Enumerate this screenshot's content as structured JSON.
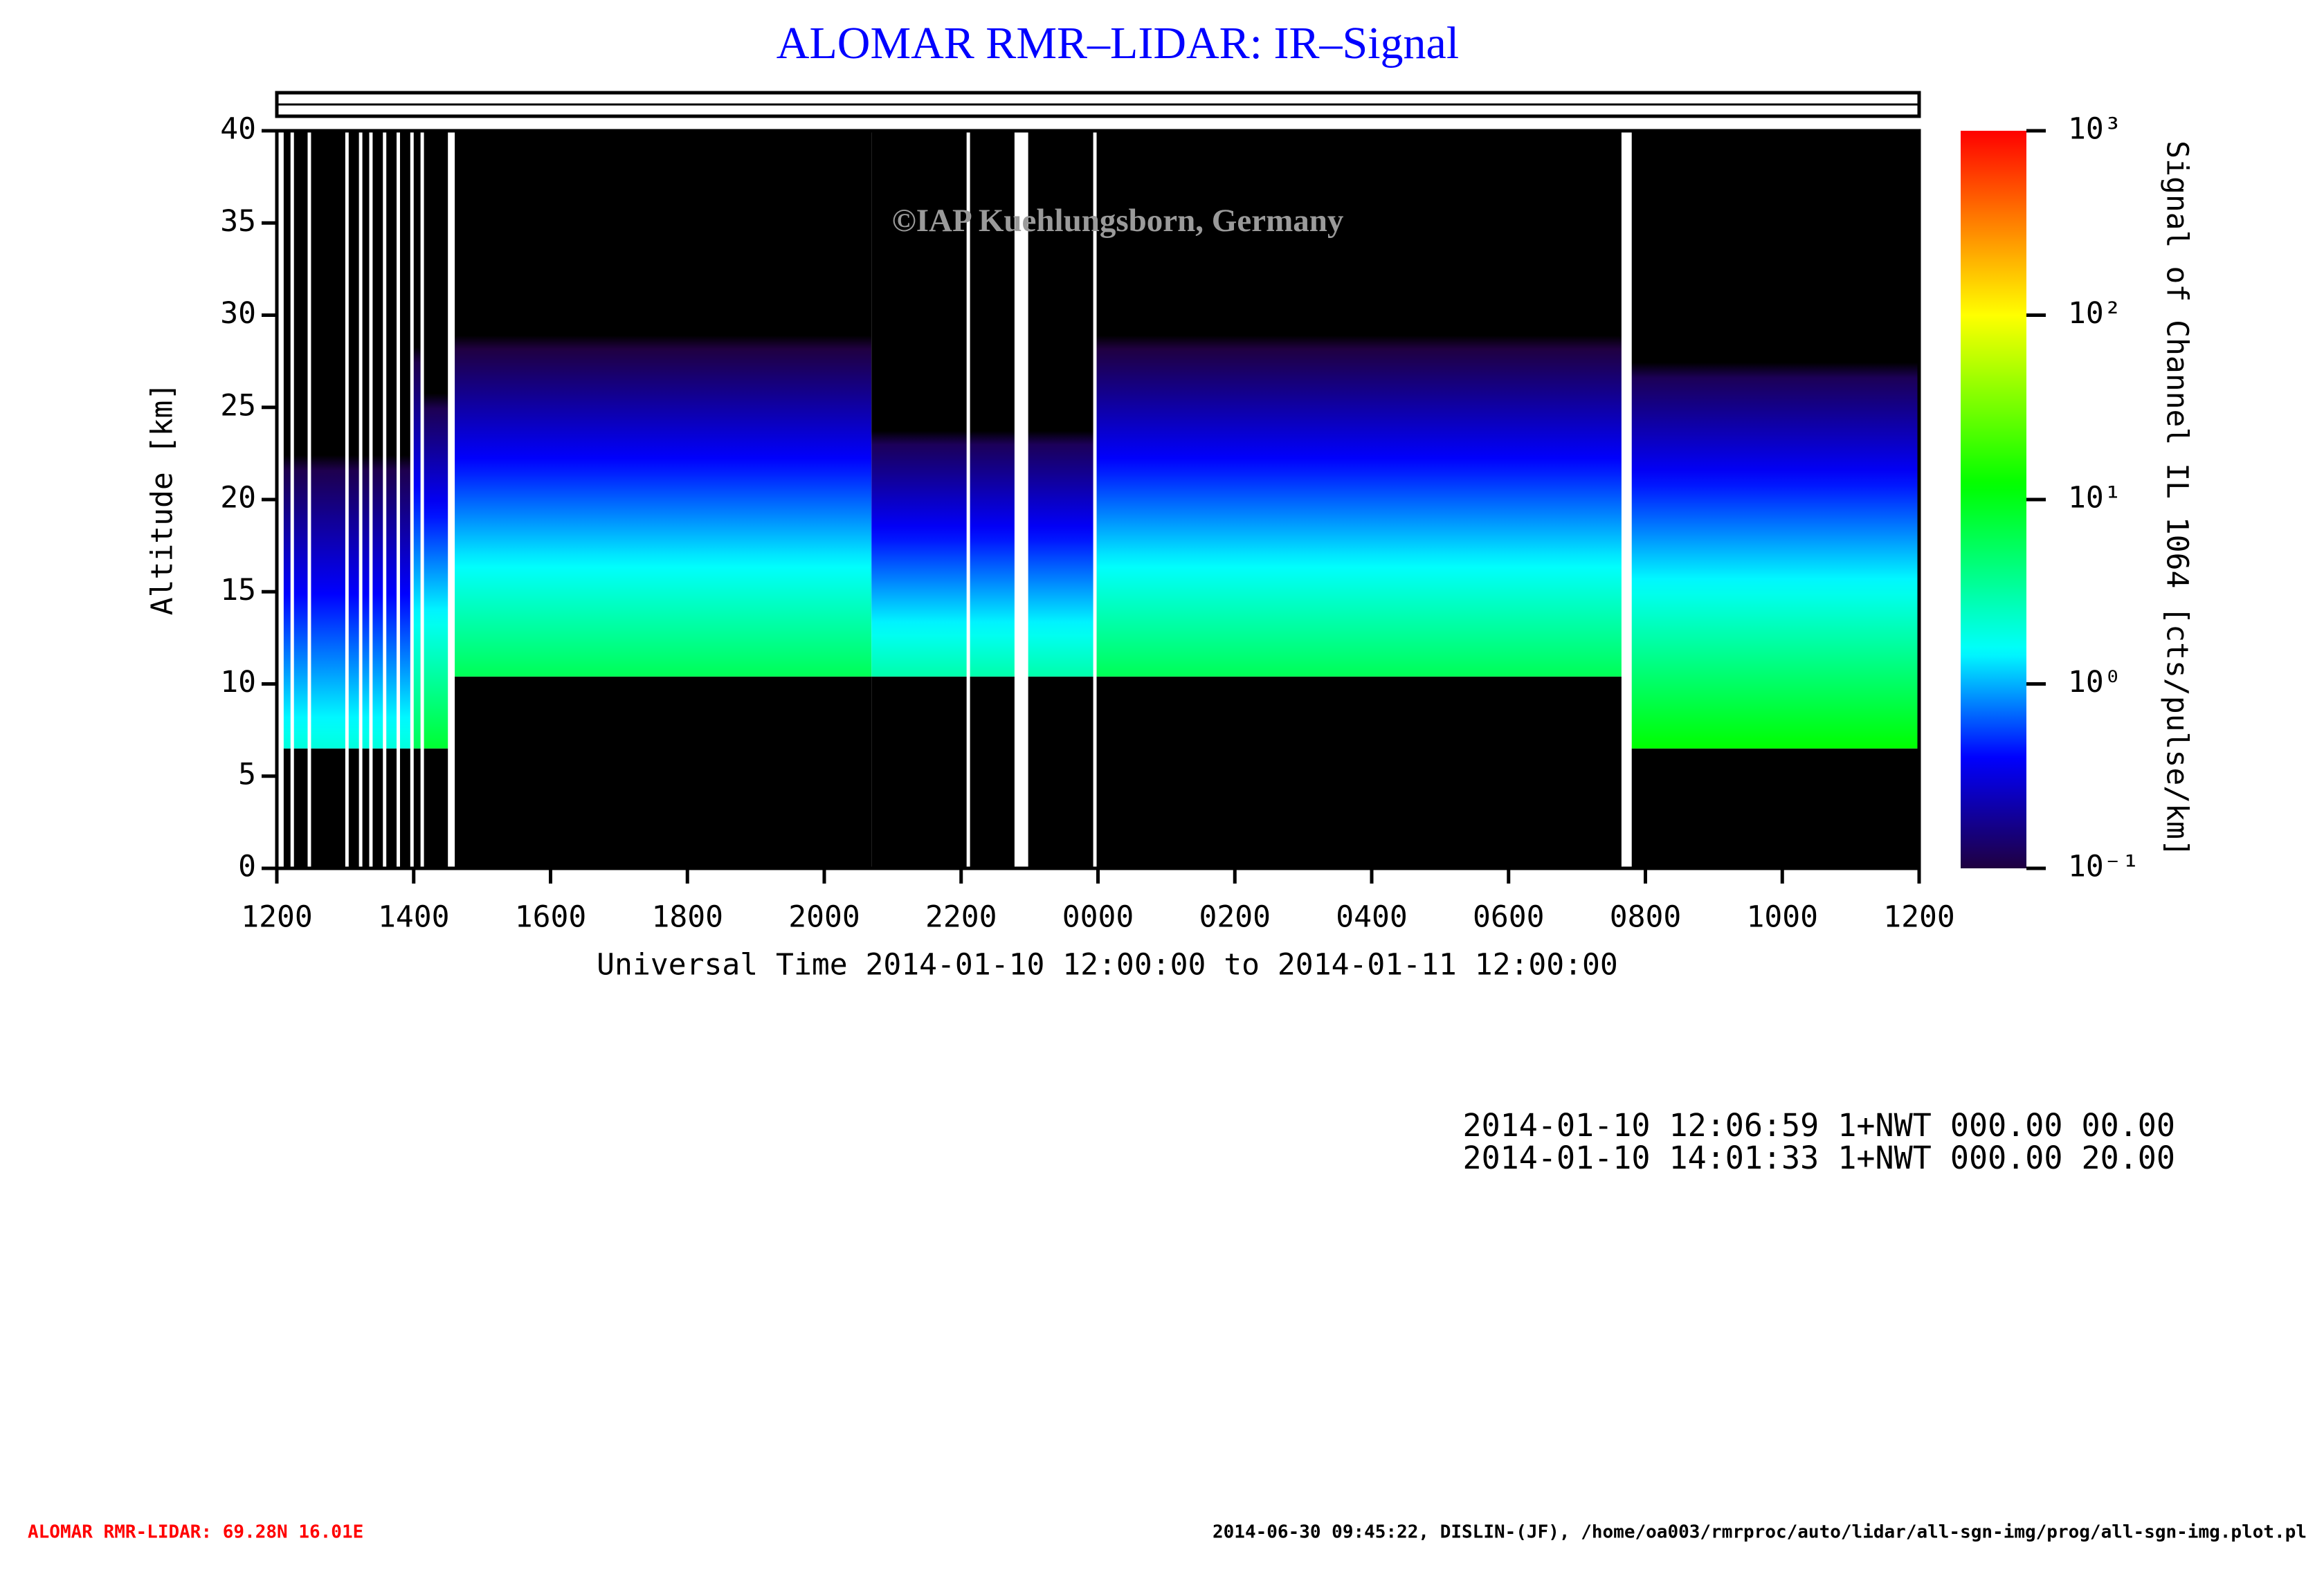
{
  "chart_data": {
    "type": "lidar-heatmap",
    "title": "ALOMAR RMR–LIDAR: IR–Signal",
    "watermark": "©IAP Kuehlungsborn, Germany",
    "x_label": "Universal Time 2014-01-10 12:00:00 to 2014-01-11 12:00:00",
    "y_label": "Altitude [km]",
    "colorbar_label": "Signal of Channel IL 1064 [cts/pulse/km]",
    "xlim": [
      0,
      24
    ],
    "xticks": [
      {
        "value": 0,
        "label": "1200"
      },
      {
        "value": 2,
        "label": "1400"
      },
      {
        "value": 4,
        "label": "1600"
      },
      {
        "value": 6,
        "label": "1800"
      },
      {
        "value": 8,
        "label": "2000"
      },
      {
        "value": 10,
        "label": "2200"
      },
      {
        "value": 12,
        "label": "0000"
      },
      {
        "value": 14,
        "label": "0200"
      },
      {
        "value": 16,
        "label": "0400"
      },
      {
        "value": 18,
        "label": "0600"
      },
      {
        "value": 20,
        "label": "0800"
      },
      {
        "value": 22,
        "label": "1000"
      },
      {
        "value": 24,
        "label": "1200"
      }
    ],
    "ylim": [
      0,
      40
    ],
    "yticks": [
      0,
      5,
      10,
      15,
      20,
      25,
      30,
      35,
      40
    ],
    "clim": [
      0.1,
      1000
    ],
    "color_scale": "log",
    "cticks": [
      {
        "value": 0.1,
        "label": "10⁻¹"
      },
      {
        "value": 1,
        "label": "10⁰"
      },
      {
        "value": 10,
        "label": "10¹"
      },
      {
        "value": 100,
        "label": "10²"
      },
      {
        "value": 1000,
        "label": "10³"
      }
    ],
    "colormap": [
      {
        "value": 0.1,
        "color": "#200040"
      },
      {
        "value": 0.4,
        "color": "#0000ff"
      },
      {
        "value": 1.5,
        "color": "#00ffff"
      },
      {
        "value": 12,
        "color": "#00ff00"
      },
      {
        "value": 100,
        "color": "#ffff00"
      },
      {
        "value": 1000,
        "color": "#ff0000"
      }
    ],
    "segments": [
      {
        "start": 0.1,
        "end": 0.2,
        "floor": 6.5,
        "signal": 2,
        "scale_height": 12
      },
      {
        "start": 0.25,
        "end": 0.45,
        "floor": 6.5,
        "signal": 2,
        "scale_height": 12
      },
      {
        "start": 0.5,
        "end": 1.0,
        "floor": 6.5,
        "signal": 2,
        "scale_height": 12
      },
      {
        "start": 1.05,
        "end": 1.2,
        "floor": 6.5,
        "signal": 2,
        "scale_height": 12
      },
      {
        "start": 1.25,
        "end": 1.35,
        "floor": 6.5,
        "signal": 2,
        "scale_height": 12
      },
      {
        "start": 1.4,
        "end": 1.55,
        "floor": 6.5,
        "signal": 2,
        "scale_height": 12
      },
      {
        "start": 1.6,
        "end": 1.75,
        "floor": 6.5,
        "signal": 2,
        "scale_height": 12
      },
      {
        "start": 1.8,
        "end": 1.95,
        "floor": 6.5,
        "signal": 2,
        "scale_height": 12
      },
      {
        "start": 2.0,
        "end": 2.1,
        "floor": 6.5,
        "signal": 6,
        "scale_height": 12
      },
      {
        "start": 2.15,
        "end": 2.5,
        "floor": 6.5,
        "signal": 8,
        "scale_height": 10
      },
      {
        "start": 2.6,
        "end": 8.69,
        "floor": 10.4,
        "signal": 6,
        "scale_height": 10
      },
      {
        "start": 8.69,
        "end": 10.08,
        "floor": 10.4,
        "signal": 3,
        "scale_height": 9
      },
      {
        "start": 10.13,
        "end": 10.78,
        "floor": 10.4,
        "signal": 3,
        "scale_height": 9
      },
      {
        "start": 10.98,
        "end": 11.93,
        "floor": 10.4,
        "signal": 3,
        "scale_height": 9
      },
      {
        "start": 11.98,
        "end": 19.65,
        "floor": 10.4,
        "signal": 6,
        "scale_height": 10
      },
      {
        "start": 19.8,
        "end": 24,
        "floor": 6.5,
        "signal": 12,
        "scale_height": 10
      }
    ],
    "info_lines": [
      "2014-01-10 12:06:59 1+NWT 000.00 00.00",
      "2014-01-10 14:01:33 1+NWT 000.00 20.00"
    ],
    "footer_left": "ALOMAR RMR-LIDAR: 69.28N 16.01E",
    "footer_right": "2014-06-30 09:45:22, DISLIN-(JF), /home/oa003/rmrproc/auto/lidar/all-sgn-img/prog/all-sgn-img.plot.pl"
  }
}
